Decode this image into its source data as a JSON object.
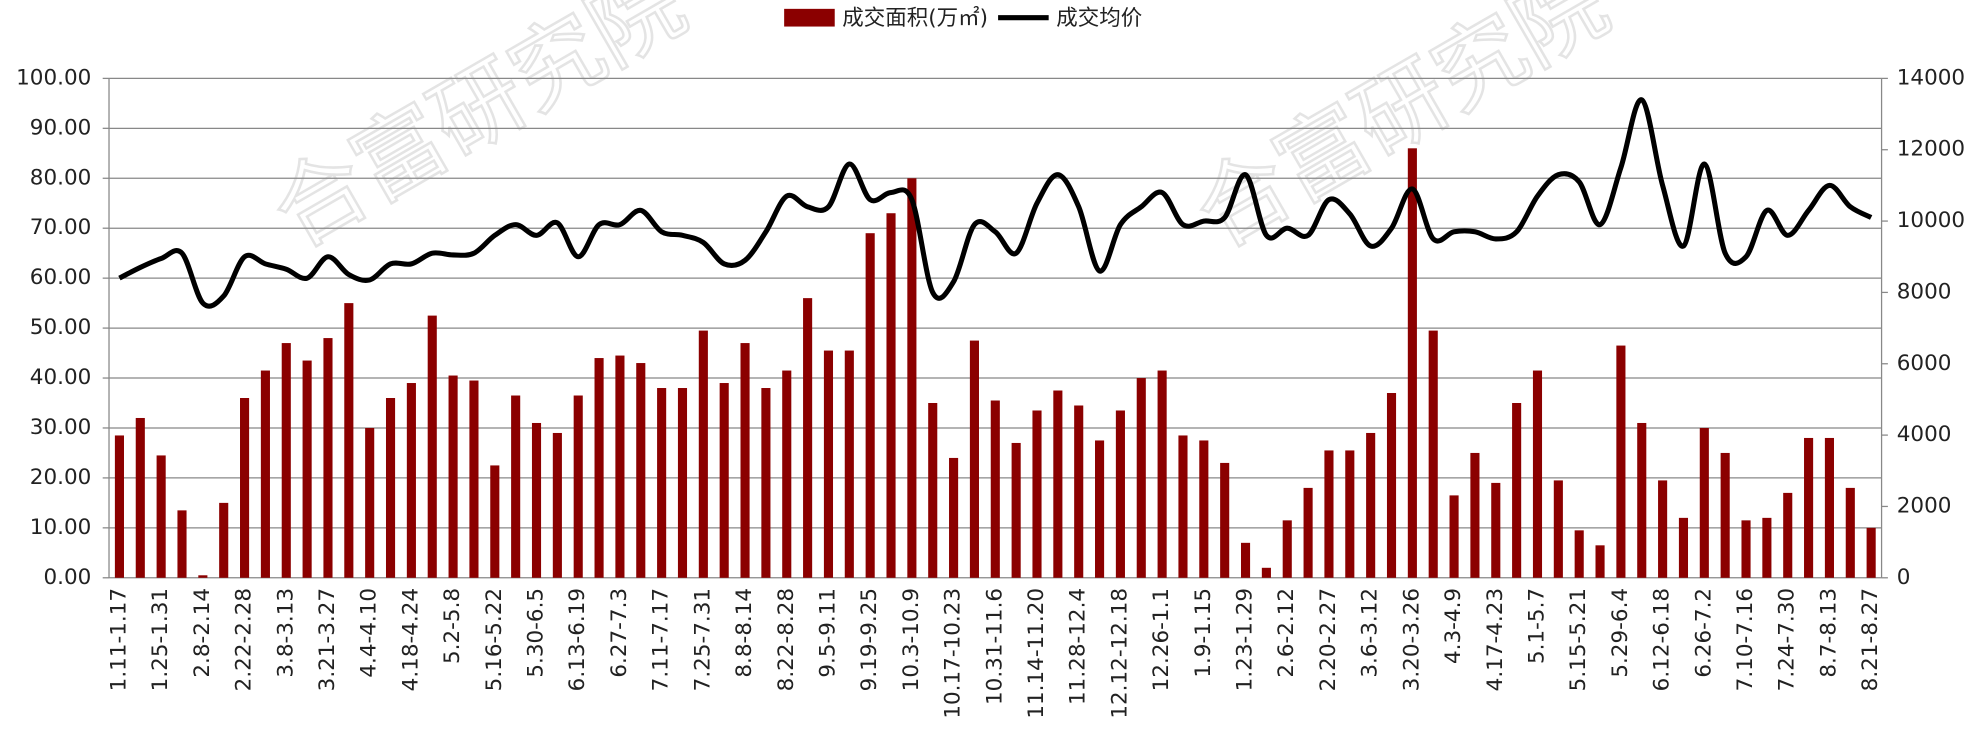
{
  "chart_data": {
    "type": "bar_line",
    "watermark": "合富研究院",
    "categories": [
      "1.11-1.17",
      null,
      "1.25-1.31",
      null,
      "2.8-2.14",
      null,
      "2.22-2.28",
      null,
      "3.8-3.13",
      null,
      "3.21-3.27",
      null,
      "4.4-4.10",
      null,
      "4.18-4.24",
      null,
      "5.2-5.8",
      null,
      "5.16-5.22",
      null,
      "5.30-6.5",
      null,
      "6.13-6.19",
      null,
      "6.27-7.3",
      null,
      "7.11-7.17",
      null,
      "7.25-7.31",
      null,
      "8.8-8.14",
      null,
      "8.22-8.28",
      null,
      "9.5-9.11",
      null,
      "9.19-9.25",
      null,
      "10.3-10.9",
      null,
      "10.17-10.23",
      null,
      "10.31-11.6",
      null,
      "11.14-11.20",
      null,
      "11.28-12.4",
      null,
      "12.12-12.18",
      null,
      "12.26-1.1",
      null,
      "1.9-1.15",
      null,
      "1.23-1.29",
      null,
      "2.6-2.12",
      null,
      "2.20-2.27",
      null,
      "3.6-3.12",
      null,
      "3.20-3.26",
      null,
      "4.3-4.9",
      null,
      "4.17-4.23",
      null,
      "5.1-5.7",
      null,
      "5.15-5.21",
      null,
      "5.29-6.4",
      null,
      "6.12-6.18",
      null,
      "6.26-7.2",
      null,
      "7.10-7.16",
      null,
      "7.24-7.30",
      null,
      "8.7-8.13",
      null,
      "8.21-8.27"
    ],
    "series": [
      {
        "name": "成交面积(万㎡)",
        "color": "#8b0000",
        "kind": "bar",
        "values": [
          28.5,
          32,
          24.5,
          13.5,
          0.5,
          15,
          36,
          41.5,
          47,
          43.5,
          48,
          55,
          30,
          36,
          39,
          52.5,
          40.5,
          39.5,
          22.5,
          36.5,
          31,
          29,
          36.5,
          44,
          44.5,
          43,
          38,
          38,
          49.5,
          39,
          47,
          38,
          41.5,
          56,
          45.5,
          45.5,
          69,
          73,
          80,
          35,
          24,
          47.5,
          35.5,
          27,
          33.5,
          37.5,
          34.5,
          27.5,
          33.5,
          40,
          41.5,
          28.5,
          27.5,
          23,
          7,
          2,
          11.5,
          18,
          25.5,
          25.5,
          29,
          37,
          86,
          49.5,
          16.5,
          25,
          19,
          35,
          41.5,
          19.5,
          9.5,
          6.5,
          46.5,
          31,
          19.5,
          12,
          30,
          25,
          11.5,
          12,
          17,
          28,
          28,
          18,
          10
        ]
      },
      {
        "name": "成交均价",
        "color": "#000000",
        "kind": "line",
        "axis": "y2",
        "values": [
          8400,
          8700,
          8950,
          9100,
          7700,
          7900,
          9000,
          8800,
          8650,
          8400,
          9000,
          8500,
          8350,
          8800,
          8800,
          9100,
          9050,
          9100,
          9600,
          9900,
          9600,
          9950,
          9000,
          9900,
          9900,
          10300,
          9700,
          9600,
          9400,
          8800,
          8900,
          9700,
          10700,
          10400,
          10400,
          11600,
          10600,
          10800,
          10600,
          8000,
          8300,
          9900,
          9700,
          9100,
          10500,
          11300,
          10400,
          8600,
          9900,
          10400,
          10800,
          9900,
          10000,
          10100,
          11300,
          9600,
          9800,
          9600,
          10600,
          10200,
          9300,
          9800,
          10900,
          9500,
          9700,
          9700,
          9500,
          9700,
          10700,
          11300,
          11100,
          9900,
          11500,
          13400,
          11000,
          9300,
          11600,
          9100,
          9000,
          10300,
          9600,
          10300,
          11000,
          10400,
          10100
        ]
      }
    ],
    "ylim": [
      0,
      100
    ],
    "yticks": [
      {
        "value": 0,
        "label": "0.00"
      },
      {
        "value": 10,
        "label": "10.00"
      },
      {
        "value": 20,
        "label": "20.00"
      },
      {
        "value": 30,
        "label": "30.00"
      },
      {
        "value": 40,
        "label": "40.00"
      },
      {
        "value": 50,
        "label": "50.00"
      },
      {
        "value": 60,
        "label": "60.00"
      },
      {
        "value": 70,
        "label": "70.00"
      },
      {
        "value": 80,
        "label": "80.00"
      },
      {
        "value": 90,
        "label": "90.00"
      },
      {
        "value": 100,
        "label": "100.00"
      }
    ],
    "y2lim": [
      0,
      14000
    ],
    "y2ticks": [
      0,
      2000,
      4000,
      6000,
      8000,
      10000,
      12000,
      14000
    ],
    "grid": true,
    "legend": "top"
  }
}
